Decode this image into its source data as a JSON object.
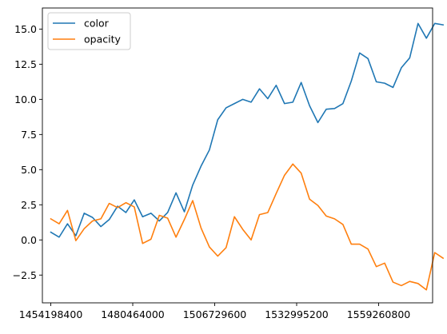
{
  "chart_data": {
    "type": "line",
    "title": "",
    "xlabel": "",
    "ylabel": "",
    "xlim": [
      1451502000,
      1576566000
    ],
    "ylim": [
      -4.475,
      16.5
    ],
    "x_ticks": [
      1454198400,
      1480464000,
      1506729600,
      1532995200,
      1559260800
    ],
    "x_tick_labels": [
      "1454198400",
      "1480464000",
      "1506729600",
      "1532995200",
      "1559260800"
    ],
    "y_ticks": [
      -2.5,
      0.0,
      2.5,
      5.0,
      7.5,
      10.0,
      12.5,
      15.0
    ],
    "y_tick_labels": [
      "−2.5",
      "0.0",
      "2.5",
      "5.0",
      "7.5",
      "10.0",
      "12.5",
      "15.0"
    ],
    "grid": false,
    "legend_position": "upper left",
    "x": [
      1454198400,
      1456875000,
      1459550000,
      1462225000,
      1464900000,
      1467575000,
      1470250000,
      1472925000,
      1475600000,
      1478275000,
      1480950000,
      1483625000,
      1486300000,
      1488975000,
      1491650000,
      1494325000,
      1497000000,
      1499675000,
      1502350000,
      1505025000,
      1507700000,
      1510375000,
      1513050000,
      1515725000,
      1518400000,
      1521075000,
      1523750000,
      1526425000,
      1529100000,
      1531775000,
      1534450000,
      1537125000,
      1539800000,
      1542475000,
      1545150000,
      1547825000,
      1550500000,
      1553175000,
      1555850000,
      1558525000,
      1561200000,
      1563875000,
      1566550000,
      1569225000,
      1571900000,
      1574575000
    ],
    "series": [
      {
        "name": "color",
        "color": "#1f77b4",
        "values": [
          0.55,
          0.2,
          1.15,
          0.3,
          1.9,
          1.6,
          0.95,
          1.45,
          2.4,
          1.95,
          2.85,
          1.65,
          1.9,
          1.35,
          1.95,
          3.35,
          2.0,
          3.9,
          5.25,
          6.4,
          8.55,
          9.4,
          9.7,
          10.0,
          9.8,
          10.75,
          10.05,
          11.0,
          9.7,
          9.8,
          11.2,
          9.55,
          8.35,
          9.3,
          9.35,
          9.7,
          11.3,
          13.3,
          12.9,
          11.25,
          11.15,
          10.85,
          12.25,
          12.95,
          15.4,
          14.35
        ],
        "extra_tail_values": [
          15.4,
          15.3
        ]
      },
      {
        "name": "opacity",
        "color": "#ff7f0e",
        "values": [
          1.5,
          1.15,
          2.1,
          -0.05,
          0.8,
          1.35,
          1.5,
          2.6,
          2.3,
          2.65,
          2.35,
          -0.25,
          0.05,
          1.75,
          1.55,
          0.2,
          1.45,
          2.8,
          0.85,
          -0.5,
          -1.15,
          -0.55,
          1.65,
          0.75,
          0.0,
          1.8,
          1.95,
          3.3,
          4.6,
          5.4,
          4.75,
          2.9,
          2.45,
          1.7,
          1.5,
          1.1,
          -0.3,
          -0.3,
          -0.65,
          -1.9,
          -1.65,
          -3.0,
          -3.25,
          -2.95,
          -3.1,
          -3.55
        ],
        "extra_tail_values": [
          -0.9,
          -1.3
        ]
      }
    ]
  }
}
